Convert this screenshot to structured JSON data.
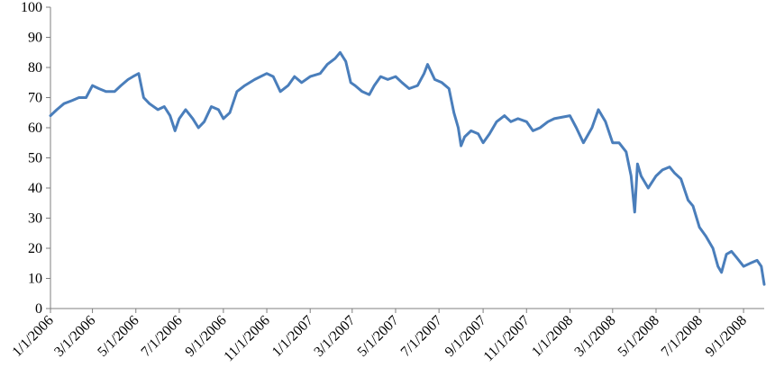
{
  "chart_data": {
    "type": "line",
    "title": "",
    "xlabel": "",
    "ylabel": "",
    "ylim": [
      0,
      100
    ],
    "yticks": [
      0,
      10,
      20,
      30,
      40,
      50,
      60,
      70,
      80,
      90,
      100
    ],
    "xlim": [
      "2006-01-01",
      "2008-09-30"
    ],
    "xtick_labels": [
      "1/1/2006",
      "3/1/2006",
      "5/1/2006",
      "7/1/2006",
      "9/1/2006",
      "11/1/2006",
      "1/1/2007",
      "3/1/2007",
      "5/1/2007",
      "7/1/2007",
      "9/1/2007",
      "11/1/2007",
      "1/1/2008",
      "3/1/2008",
      "5/1/2008",
      "7/1/2008",
      "9/1/2008"
    ],
    "xtick_dates": [
      "2006-01-01",
      "2006-03-01",
      "2006-05-01",
      "2006-07-01",
      "2006-09-01",
      "2006-11-01",
      "2007-01-01",
      "2007-03-01",
      "2007-05-01",
      "2007-07-01",
      "2007-09-01",
      "2007-11-01",
      "2008-01-01",
      "2008-03-01",
      "2008-05-01",
      "2008-07-01",
      "2008-09-01"
    ],
    "grid": false,
    "legend": "none",
    "series": [
      {
        "color": "#4a7ebb",
        "points": [
          [
            "2006-01-01",
            64
          ],
          [
            "2006-01-10",
            66
          ],
          [
            "2006-01-20",
            68
          ],
          [
            "2006-01-31",
            69
          ],
          [
            "2006-02-10",
            70
          ],
          [
            "2006-02-20",
            70
          ],
          [
            "2006-03-01",
            74
          ],
          [
            "2006-03-10",
            73
          ],
          [
            "2006-03-20",
            72
          ],
          [
            "2006-04-01",
            72
          ],
          [
            "2006-04-10",
            74
          ],
          [
            "2006-04-20",
            76
          ],
          [
            "2006-04-27",
            77
          ],
          [
            "2006-05-05",
            78
          ],
          [
            "2006-05-12",
            70
          ],
          [
            "2006-05-20",
            68
          ],
          [
            "2006-06-01",
            66
          ],
          [
            "2006-06-10",
            67
          ],
          [
            "2006-06-18",
            64
          ],
          [
            "2006-06-25",
            59
          ],
          [
            "2006-07-01",
            63
          ],
          [
            "2006-07-10",
            66
          ],
          [
            "2006-07-20",
            63
          ],
          [
            "2006-07-28",
            60
          ],
          [
            "2006-08-05",
            62
          ],
          [
            "2006-08-15",
            67
          ],
          [
            "2006-08-25",
            66
          ],
          [
            "2006-09-01",
            63
          ],
          [
            "2006-09-10",
            65
          ],
          [
            "2006-09-20",
            72
          ],
          [
            "2006-10-01",
            74
          ],
          [
            "2006-10-15",
            76
          ],
          [
            "2006-11-01",
            78
          ],
          [
            "2006-11-10",
            77
          ],
          [
            "2006-11-20",
            72
          ],
          [
            "2006-12-01",
            74
          ],
          [
            "2006-12-10",
            77
          ],
          [
            "2006-12-20",
            75
          ],
          [
            "2007-01-01",
            77
          ],
          [
            "2007-01-15",
            78
          ],
          [
            "2007-01-25",
            81
          ],
          [
            "2007-02-05",
            83
          ],
          [
            "2007-02-12",
            85
          ],
          [
            "2007-02-20",
            82
          ],
          [
            "2007-02-27",
            75
          ],
          [
            "2007-03-05",
            74
          ],
          [
            "2007-03-15",
            72
          ],
          [
            "2007-03-25",
            71
          ],
          [
            "2007-04-01",
            74
          ],
          [
            "2007-04-10",
            77
          ],
          [
            "2007-04-20",
            76
          ],
          [
            "2007-05-01",
            77
          ],
          [
            "2007-05-10",
            75
          ],
          [
            "2007-05-20",
            73
          ],
          [
            "2007-06-01",
            74
          ],
          [
            "2007-06-10",
            78
          ],
          [
            "2007-06-15",
            81
          ],
          [
            "2007-06-25",
            76
          ],
          [
            "2007-07-05",
            75
          ],
          [
            "2007-07-15",
            73
          ],
          [
            "2007-07-22",
            65
          ],
          [
            "2007-07-28",
            60
          ],
          [
            "2007-08-01",
            54
          ],
          [
            "2007-08-06",
            57
          ],
          [
            "2007-08-15",
            59
          ],
          [
            "2007-08-25",
            58
          ],
          [
            "2007-09-01",
            55
          ],
          [
            "2007-09-10",
            58
          ],
          [
            "2007-09-20",
            62
          ],
          [
            "2007-10-01",
            64
          ],
          [
            "2007-10-10",
            62
          ],
          [
            "2007-10-20",
            63
          ],
          [
            "2007-11-01",
            62
          ],
          [
            "2007-11-10",
            59
          ],
          [
            "2007-11-20",
            60
          ],
          [
            "2007-12-01",
            62
          ],
          [
            "2007-12-10",
            63
          ],
          [
            "2008-01-01",
            64
          ],
          [
            "2008-01-10",
            60
          ],
          [
            "2008-01-20",
            55
          ],
          [
            "2008-02-01",
            60
          ],
          [
            "2008-02-10",
            66
          ],
          [
            "2008-02-20",
            62
          ],
          [
            "2008-03-01",
            55
          ],
          [
            "2008-03-10",
            55
          ],
          [
            "2008-03-20",
            52
          ],
          [
            "2008-03-27",
            44
          ],
          [
            "2008-04-01",
            32
          ],
          [
            "2008-04-05",
            48
          ],
          [
            "2008-04-10",
            44
          ],
          [
            "2008-04-20",
            40
          ],
          [
            "2008-05-01",
            44
          ],
          [
            "2008-05-10",
            46
          ],
          [
            "2008-05-20",
            47
          ],
          [
            "2008-05-27",
            45
          ],
          [
            "2008-06-05",
            43
          ],
          [
            "2008-06-15",
            36
          ],
          [
            "2008-06-22",
            34
          ],
          [
            "2008-07-01",
            27
          ],
          [
            "2008-07-10",
            24
          ],
          [
            "2008-07-20",
            20
          ],
          [
            "2008-07-27",
            14
          ],
          [
            "2008-08-01",
            12
          ],
          [
            "2008-08-08",
            18
          ],
          [
            "2008-08-15",
            19
          ],
          [
            "2008-08-22",
            17
          ],
          [
            "2008-09-01",
            14
          ],
          [
            "2008-09-10",
            15
          ],
          [
            "2008-09-20",
            16
          ],
          [
            "2008-09-26",
            14
          ],
          [
            "2008-09-30",
            8
          ]
        ]
      }
    ]
  }
}
